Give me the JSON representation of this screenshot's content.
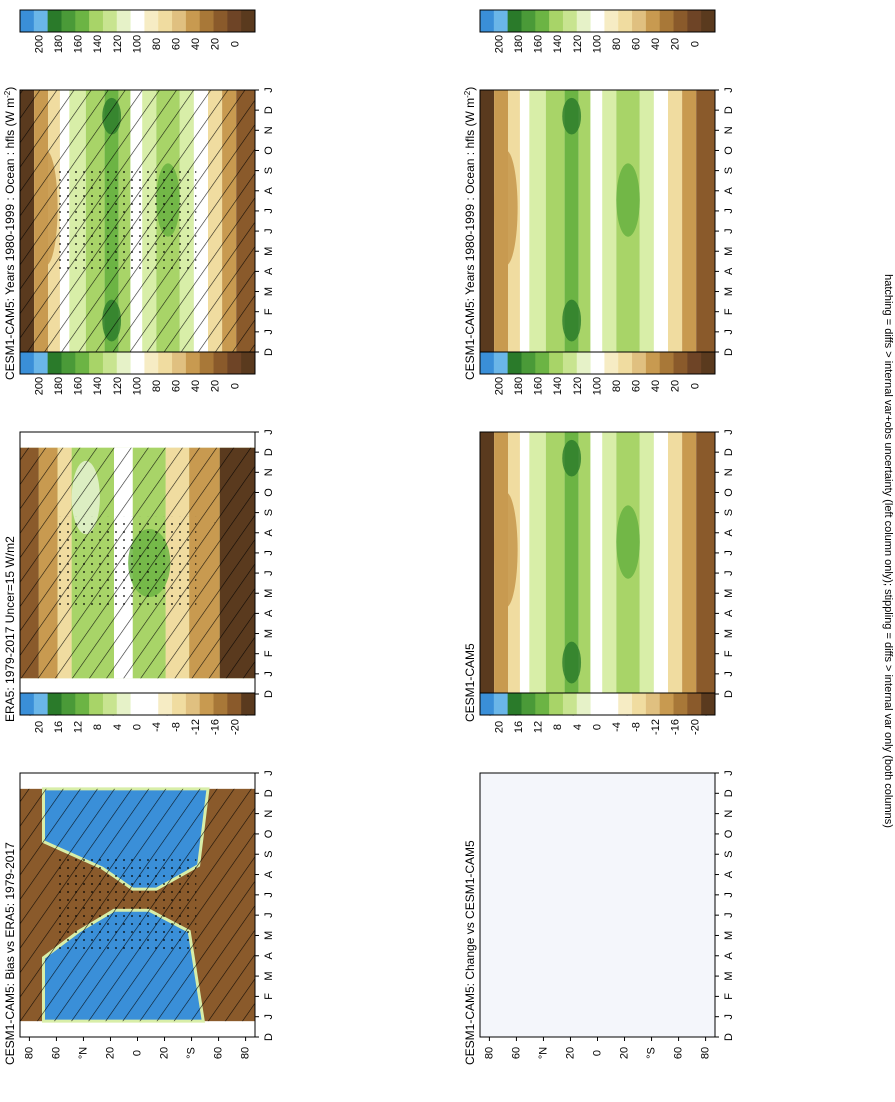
{
  "footer_note": "hatching = diffs > internal var+obs uncertainty (left column only); stippling = diffs > internal var only (both columns)",
  "month_labels": [
    "D",
    "J",
    "F",
    "M",
    "A",
    "M",
    "J",
    "J",
    "A",
    "S",
    "O",
    "N",
    "D",
    "J"
  ],
  "lat_labels": [
    "80",
    "60",
    "°N",
    "20",
    "0",
    "20",
    "°S",
    "60",
    "80"
  ],
  "colors": {
    "brown_dark": "#5a3a1e",
    "brown": "#8a5a2b",
    "tan": "#c89a50",
    "sand": "#f0dca0",
    "white": "#ffffff",
    "lightgreen": "#d8eea8",
    "green": "#a8d468",
    "midgreen": "#6cb444",
    "darkgreen": "#2a7a2a",
    "blue": "#3a8fd8",
    "empty": "#f4f6fb",
    "hatch": "#000000"
  },
  "colorbar_abs": {
    "labels": [
      "200",
      "180",
      "160",
      "140",
      "120",
      "100",
      "80",
      "60",
      "40",
      "20",
      "0"
    ],
    "colors": [
      "#3a8fd8",
      "#6ab6e8",
      "#2a7a2a",
      "#4a9a38",
      "#6cb444",
      "#a8d468",
      "#c8e490",
      "#e6f2c8",
      "#ffffff",
      "#f6ecc4",
      "#f0dca0",
      "#e0c080",
      "#c89a50",
      "#a87838",
      "#8a5a2b",
      "#6e4426",
      "#5a3a1e"
    ]
  },
  "colorbar_diff": {
    "labels": [
      "20",
      "16",
      "12",
      "8",
      "4",
      "0",
      "-4",
      "-8",
      "-12",
      "-16",
      "-20"
    ],
    "colors": [
      "#3a8fd8",
      "#6ab6e8",
      "#2a7a2a",
      "#4a9a38",
      "#6cb444",
      "#a8d468",
      "#c8e490",
      "#e6f2c8",
      "#ffffff",
      "#ffffff",
      "#f6ecc4",
      "#f0dca0",
      "#e0c080",
      "#c89a50",
      "#a87838",
      "#8a5a2b",
      "#5a3a1e"
    ]
  },
  "panels": [
    {
      "id": "p1",
      "title": "CESM1-CAM5: Years 1980-1999 : Ocean : hfls (W m-2)",
      "title_main": "CESM1-CAM5: Years 1980-1999 : Ocean : hfls (W m",
      "title_sup": "-2",
      "title_end": ")",
      "kind": "model",
      "hatch": true,
      "colorbar": "abs"
    },
    {
      "id": "p2",
      "title": "CESM1-CAM5: Years 1980-1999 : Ocean : hfls (W m-2)",
      "title_main": "CESM1-CAM5: Years 1980-1999 : Ocean : hfls (W m",
      "title_sup": "-2",
      "title_end": ")",
      "kind": "model",
      "hatch": false,
      "colorbar": "abs"
    },
    {
      "id": "p3",
      "title": "ERA5: 1979-2017 Uncer=15 W/m2",
      "title_main": "ERA5: 1979-2017 Uncer=15 W/m2",
      "title_sup": "",
      "title_end": "",
      "kind": "obs",
      "hatch": true,
      "colorbar": "abs"
    },
    {
      "id": "p4",
      "title": "CESM1-CAM5",
      "title_main": "CESM1-CAM5",
      "title_sup": "",
      "title_end": "",
      "kind": "model",
      "hatch": false,
      "colorbar": "abs"
    },
    {
      "id": "p5",
      "title": "CESM1-CAM5: Bias vs ERA5: 1979-2017",
      "title_main": "CESM1-CAM5: Bias vs ERA5: 1979-2017",
      "title_sup": "",
      "title_end": "",
      "kind": "bias",
      "hatch": true,
      "colorbar": "diff"
    },
    {
      "id": "p6",
      "title": "CESM1-CAM5: Change vs CESM1-CAM5",
      "title_main": "CESM1-CAM5: Change vs CESM1-CAM5",
      "title_sup": "",
      "title_end": "",
      "kind": "empty",
      "hatch": false,
      "colorbar": "diff"
    }
  ],
  "chart_data": [
    {
      "type": "heatmap",
      "title": "CESM1-CAM5: Years 1980-1999 : Ocean : hfls (W m-2)",
      "x": [
        "D",
        "J",
        "F",
        "M",
        "A",
        "M",
        "J",
        "J",
        "A",
        "S",
        "O",
        "N",
        "D",
        "J"
      ],
      "y": [
        "80",
        "60",
        "°N",
        "20",
        "0",
        "20",
        "°S",
        "60",
        "80"
      ],
      "colorbar_ticks": [
        200,
        180,
        160,
        140,
        120,
        100,
        80,
        60,
        40,
        20,
        0
      ]
    },
    {
      "type": "heatmap",
      "title": "CESM1-CAM5: Years 1980-1999 : Ocean : hfls (W m-2)",
      "x": [
        "D",
        "J",
        "F",
        "M",
        "A",
        "M",
        "J",
        "J",
        "A",
        "S",
        "O",
        "N",
        "D",
        "J"
      ],
      "y": [
        "80",
        "60",
        "°N",
        "20",
        "0",
        "20",
        "°S",
        "60",
        "80"
      ],
      "colorbar_ticks": [
        200,
        180,
        160,
        140,
        120,
        100,
        80,
        60,
        40,
        20,
        0
      ]
    },
    {
      "type": "heatmap",
      "title": "ERA5: 1979-2017 Uncer=15 W/m2",
      "x": [
        "D",
        "J",
        "F",
        "M",
        "A",
        "M",
        "J",
        "J",
        "A",
        "S",
        "O",
        "N",
        "D",
        "J"
      ],
      "y": [
        "80",
        "60",
        "°N",
        "20",
        "0",
        "20",
        "°S",
        "60",
        "80"
      ],
      "colorbar_ticks": [
        200,
        180,
        160,
        140,
        120,
        100,
        80,
        60,
        40,
        20,
        0
      ]
    },
    {
      "type": "heatmap",
      "title": "CESM1-CAM5",
      "x": [
        "D",
        "J",
        "F",
        "M",
        "A",
        "M",
        "J",
        "J",
        "A",
        "S",
        "O",
        "N",
        "D",
        "J"
      ],
      "y": [
        "80",
        "60",
        "°N",
        "20",
        "0",
        "20",
        "°S",
        "60",
        "80"
      ],
      "colorbar_ticks": [
        200,
        180,
        160,
        140,
        120,
        100,
        80,
        60,
        40,
        20,
        0
      ]
    },
    {
      "type": "heatmap",
      "title": "CESM1-CAM5: Bias vs ERA5: 1979-2017",
      "x": [
        "D",
        "J",
        "F",
        "M",
        "A",
        "M",
        "J",
        "J",
        "A",
        "S",
        "O",
        "N",
        "D",
        "J"
      ],
      "y": [
        "80",
        "60",
        "°N",
        "20",
        "0",
        "20",
        "°S",
        "60",
        "80"
      ],
      "colorbar_ticks": [
        20,
        16,
        12,
        8,
        4,
        0,
        -4,
        -8,
        -12,
        -16,
        -20
      ]
    },
    {
      "type": "heatmap",
      "title": "CESM1-CAM5: Change vs CESM1-CAM5",
      "x": [
        "D",
        "J",
        "F",
        "M",
        "A",
        "M",
        "J",
        "J",
        "A",
        "S",
        "O",
        "N",
        "D",
        "J"
      ],
      "y": [
        "80",
        "60",
        "°N",
        "20",
        "0",
        "20",
        "°S",
        "60",
        "80"
      ],
      "colorbar_ticks": [
        20,
        16,
        12,
        8,
        4,
        0,
        -4,
        -8,
        -12,
        -16,
        -20
      ]
    }
  ]
}
